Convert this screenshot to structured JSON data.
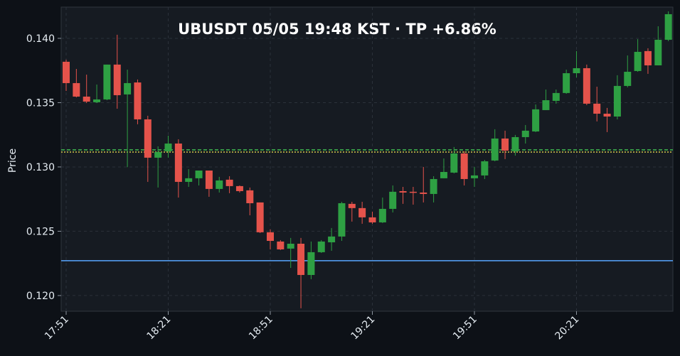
{
  "chart_data": {
    "type": "candlestick",
    "title": "UBUSDT  05/05 19:48 KST  ·  TP +6.86%",
    "y_label": "Price",
    "categories": [
      "17:51",
      null,
      null,
      null,
      null,
      null,
      null,
      null,
      null,
      null,
      "18:21",
      null,
      null,
      null,
      null,
      null,
      null,
      null,
      null,
      null,
      "18:51",
      null,
      null,
      null,
      null,
      null,
      null,
      null,
      null,
      null,
      "19:21",
      null,
      null,
      null,
      null,
      null,
      null,
      null,
      null,
      null,
      "19:51",
      null,
      null,
      null,
      null,
      null,
      null,
      null,
      null,
      null,
      "20:21",
      null,
      null,
      null,
      null,
      null,
      null,
      null,
      null,
      null
    ],
    "open": [
      0.13818,
      0.13652,
      0.13547,
      0.13503,
      0.13525,
      0.13796,
      0.13564,
      0.13657,
      0.1337,
      0.13072,
      0.13122,
      0.13182,
      0.12884,
      0.12912,
      0.12972,
      0.12829,
      0.12901,
      0.12851,
      0.12818,
      0.12724,
      0.12492,
      0.1242,
      0.12365,
      0.12403,
      0.1216,
      0.12337,
      0.12414,
      0.12459,
      0.12713,
      0.1268,
      0.12608,
      0.12569,
      0.12674,
      0.12812,
      0.12807,
      0.12801,
      0.1279,
      0.12912,
      0.12956,
      0.13105,
      0.12912,
      0.12934,
      0.1305,
      0.13221,
      0.13122,
      0.13232,
      0.13276,
      0.13442,
      0.13514,
      0.13575,
      0.13729,
      0.13768,
      0.13492,
      0.13414,
      0.13392,
      0.1363,
      0.13746,
      0.13901,
      0.1379,
      0.13989
    ],
    "high": [
      0.13834,
      0.13762,
      0.13718,
      0.13641,
      0.13796,
      0.14028,
      0.13757,
      0.1368,
      0.13398,
      0.1316,
      0.13243,
      0.13215,
      0.12983,
      0.12972,
      0.12972,
      0.12923,
      0.12928,
      0.12856,
      0.1284,
      0.12724,
      0.12514,
      0.12431,
      0.12448,
      0.12448,
      0.1242,
      0.12431,
      0.12525,
      0.12729,
      0.12729,
      0.12729,
      0.12652,
      0.12762,
      0.12856,
      0.12845,
      0.12845,
      0.13,
      0.12928,
      0.13066,
      0.13155,
      0.13122,
      0.13,
      0.13055,
      0.13293,
      0.13282,
      0.13249,
      0.13326,
      0.13486,
      0.13602,
      0.13602,
      0.13757,
      0.13901,
      0.13796,
      0.13624,
      0.13459,
      0.13713,
      0.13867,
      0.13994,
      0.13923,
      0.14094,
      0.1421
    ],
    "low": [
      0.13591,
      0.13541,
      0.13497,
      0.13497,
      0.13519,
      0.13453,
      0.12998,
      0.13332,
      0.12884,
      0.1284,
      0.13072,
      0.12762,
      0.12845,
      0.12856,
      0.12768,
      0.12801,
      0.12796,
      0.12801,
      0.12624,
      0.12486,
      0.12359,
      0.12354,
      0.12215,
      0.11901,
      0.12127,
      0.12331,
      0.12348,
      0.12425,
      0.12575,
      0.12558,
      0.12558,
      0.12564,
      0.12646,
      0.12713,
      0.12707,
      0.12724,
      0.12724,
      0.12912,
      0.1295,
      0.12856,
      0.12845,
      0.12906,
      0.13044,
      0.13061,
      0.13088,
      0.13182,
      0.13271,
      0.13442,
      0.13492,
      0.13569,
      0.13696,
      0.13481,
      0.13354,
      0.13271,
      0.1337,
      0.13619,
      0.1374,
      0.13724,
      0.1379,
      0.13978
    ],
    "close": [
      0.13652,
      0.13547,
      0.13508,
      0.13525,
      0.13796,
      0.13558,
      0.13652,
      0.1337,
      0.13072,
      0.13116,
      0.13182,
      0.12884,
      0.12912,
      0.12972,
      0.12829,
      0.12895,
      0.12851,
      0.12812,
      0.12718,
      0.12492,
      0.12425,
      0.12359,
      0.12403,
      0.1216,
      0.12337,
      0.1242,
      0.12459,
      0.12718,
      0.1268,
      0.12608,
      0.12569,
      0.12674,
      0.12807,
      0.12801,
      0.12801,
      0.1279,
      0.12906,
      0.12961,
      0.13105,
      0.12906,
      0.12934,
      0.13044,
      0.13221,
      0.13127,
      0.13232,
      0.13282,
      0.13448,
      0.13519,
      0.13575,
      0.13729,
      0.13768,
      0.13492,
      0.13414,
      0.13392,
      0.1363,
      0.1374,
      0.13895,
      0.1379,
      0.13989,
      0.14188
    ],
    "up_color": "#2ea043",
    "down_color": "#e5534b",
    "hlines": [
      {
        "value": 0.13133,
        "color": "#3fb950",
        "style": "dashed"
      },
      {
        "value": 0.13116,
        "color": "#d4c84a",
        "style": "dotted"
      },
      {
        "value": 0.12271,
        "color": "#58a6ff",
        "style": "solid"
      }
    ],
    "ylim": [
      0.11878,
      0.14243
    ],
    "yticks": [
      {
        "value": 0.12,
        "label": "0.120"
      },
      {
        "value": 0.125,
        "label": "0.125"
      },
      {
        "value": 0.13,
        "label": "0.130"
      },
      {
        "value": 0.135,
        "label": "0.135"
      },
      {
        "value": 0.14,
        "label": "0.140"
      }
    ],
    "grid": true
  }
}
